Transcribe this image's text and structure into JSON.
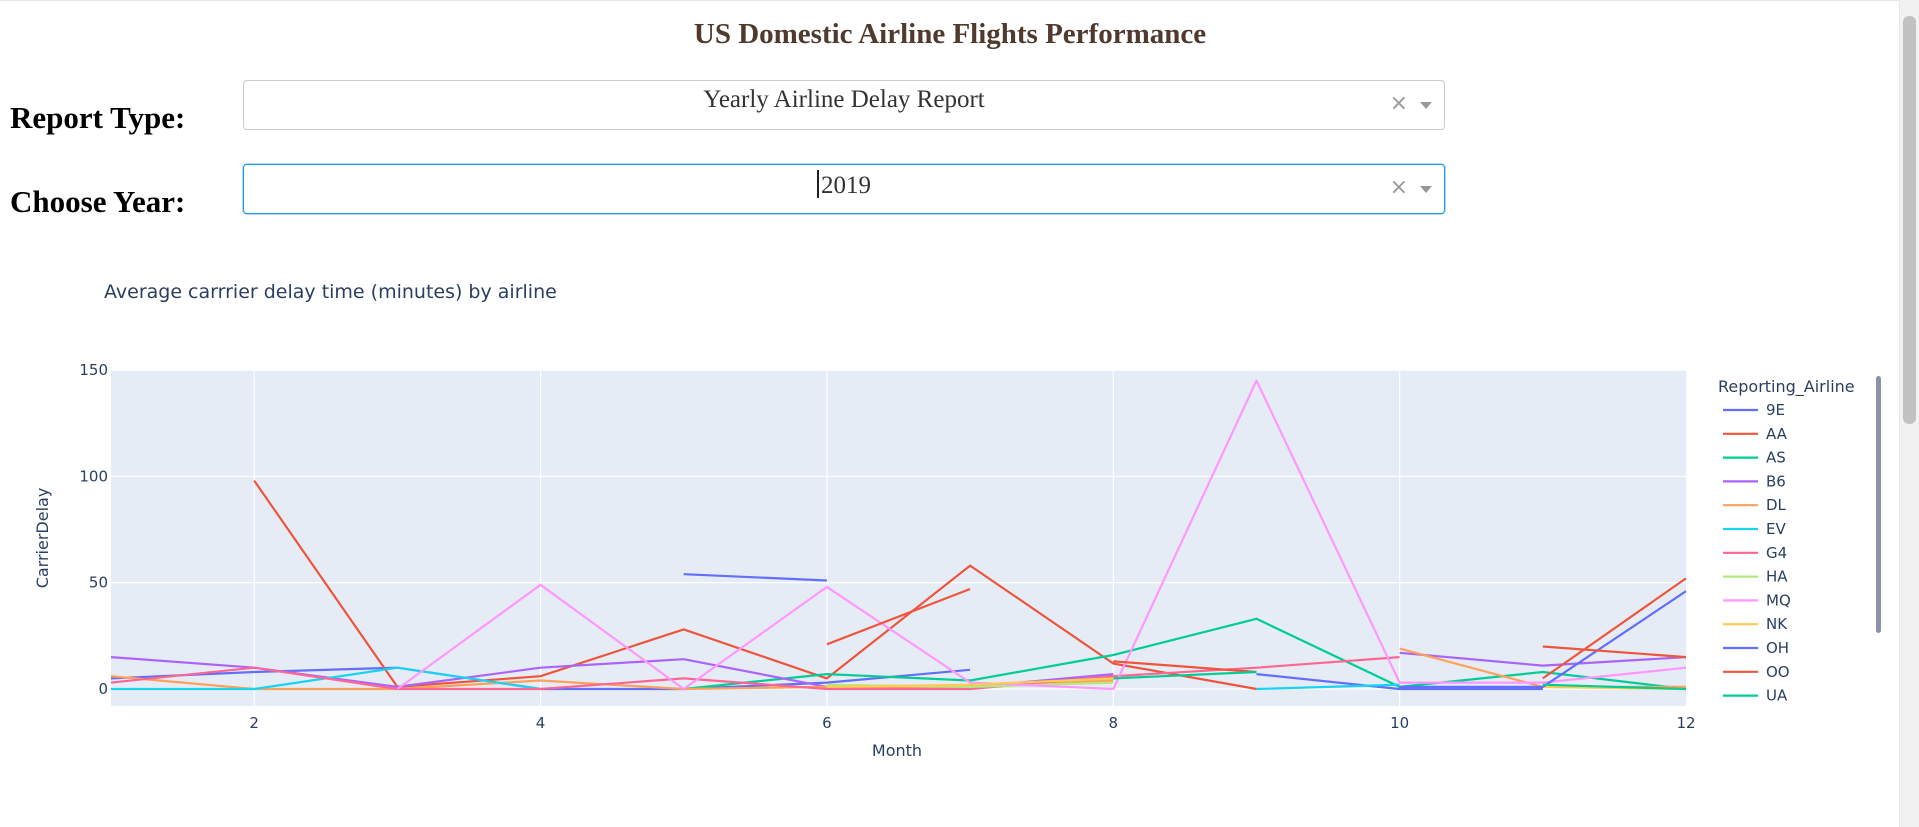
{
  "header": {
    "title": "US Domestic Airline Flights Performance"
  },
  "report_type": {
    "label": "Report Type:",
    "value": "Yearly Airline Delay Report"
  },
  "year": {
    "label": "Choose Year:",
    "value": "2019"
  },
  "colors": {
    "plot_bg": "#e5ecf6",
    "grid": "#ffffff",
    "axis_text": "#2a3f5f"
  },
  "chart_data": {
    "type": "line",
    "title": "Average carrrier delay time (minutes) by airline",
    "xlabel": "Month",
    "ylabel": "CarrierDelay",
    "xlim": [
      1,
      12
    ],
    "ylim": [
      -8,
      150
    ],
    "xticks": [
      2,
      4,
      6,
      8,
      10,
      12
    ],
    "yticks": [
      0,
      50,
      100,
      150
    ],
    "grid": true,
    "legend_title": "Reporting_Airline",
    "legend_position": "right",
    "series": [
      {
        "name": "9E",
        "color": "#636efa",
        "points": [
          [
            1,
            5
          ],
          [
            2,
            8
          ],
          [
            3,
            10
          ],
          [
            4,
            0
          ],
          [
            5,
            0
          ],
          [
            6,
            3
          ],
          [
            7,
            9
          ],
          [
            null,
            null
          ],
          [
            9,
            7
          ],
          [
            10,
            0
          ],
          [
            11,
            0
          ]
        ]
      },
      {
        "name": "AA",
        "color": "#EF553B",
        "points": [
          [
            2,
            98
          ],
          [
            3,
            1
          ],
          [
            4,
            6
          ],
          [
            5,
            28
          ],
          [
            6,
            5
          ],
          [
            7,
            58
          ],
          [
            8,
            12
          ],
          [
            9,
            0
          ]
        ]
      },
      {
        "name": "AS",
        "color": "#00cc96",
        "points": [
          [
            5,
            0
          ],
          [
            6,
            7
          ],
          [
            7,
            4
          ],
          [
            8,
            16
          ],
          [
            9,
            33
          ],
          [
            10,
            1
          ],
          [
            11,
            8
          ],
          [
            12,
            0
          ]
        ]
      },
      {
        "name": "B6",
        "color": "#ab63fa",
        "points": [
          [
            1,
            15
          ],
          [
            2,
            10
          ],
          [
            3,
            1
          ],
          [
            4,
            10
          ],
          [
            5,
            14
          ],
          [
            6,
            1
          ],
          [
            7,
            1
          ],
          [
            8,
            7
          ],
          [
            null,
            null
          ],
          [
            10,
            17
          ],
          [
            11,
            11
          ],
          [
            12,
            15
          ]
        ]
      },
      {
        "name": "DL",
        "color": "#FFA15A",
        "points": [
          [
            1,
            6
          ],
          [
            2,
            0
          ],
          [
            3,
            0
          ],
          [
            4,
            4
          ],
          [
            5,
            0
          ],
          [
            6,
            1
          ],
          [
            7,
            1
          ],
          [
            8,
            4
          ],
          [
            null,
            null
          ],
          [
            10,
            19
          ],
          [
            11,
            1
          ],
          [
            12,
            1
          ]
        ]
      },
      {
        "name": "EV",
        "color": "#19d3f3",
        "points": [
          [
            1,
            0
          ],
          [
            2,
            0
          ],
          [
            3,
            10
          ],
          [
            4,
            0
          ],
          [
            null,
            null
          ],
          [
            9,
            0
          ],
          [
            10,
            2
          ]
        ]
      },
      {
        "name": "G4",
        "color": "#FF6692",
        "points": [
          [
            1,
            3
          ],
          [
            2,
            10
          ],
          [
            3,
            0
          ],
          [
            4,
            0
          ],
          [
            5,
            5
          ],
          [
            6,
            0
          ],
          [
            7,
            0
          ],
          [
            8,
            6
          ],
          [
            9,
            10
          ],
          [
            10,
            15
          ]
        ]
      },
      {
        "name": "HA",
        "color": "#B6E880",
        "points": [
          [
            6,
            2
          ],
          [
            7,
            1
          ],
          [
            8,
            3
          ],
          [
            null,
            null
          ],
          [
            11,
            1
          ],
          [
            12,
            0
          ]
        ]
      },
      {
        "name": "MQ",
        "color": "#FF97FF",
        "points": [
          [
            3,
            0
          ],
          [
            4,
            49
          ],
          [
            5,
            0
          ],
          [
            6,
            48
          ],
          [
            7,
            3
          ],
          [
            8,
            0
          ],
          [
            9,
            145
          ],
          [
            10,
            3
          ],
          [
            11,
            3
          ],
          [
            12,
            10
          ]
        ]
      },
      {
        "name": "NK",
        "color": "#FECB52",
        "points": [
          [
            6,
            1
          ],
          [
            7,
            2
          ],
          [
            8,
            5
          ],
          [
            null,
            null
          ],
          [
            11,
            1
          ],
          [
            12,
            0
          ]
        ]
      },
      {
        "name": "OH",
        "color": "#636efa",
        "points": [
          [
            5,
            54
          ],
          [
            6,
            51
          ],
          [
            null,
            null
          ],
          [
            10,
            1
          ],
          [
            11,
            1
          ],
          [
            12,
            46
          ]
        ]
      },
      {
        "name": "OO",
        "color": "#EF553B",
        "points": [
          [
            6,
            21
          ],
          [
            7,
            47
          ],
          [
            null,
            null
          ],
          [
            8,
            13
          ],
          [
            9,
            8
          ],
          [
            null,
            null
          ],
          [
            11,
            20
          ],
          [
            12,
            15
          ],
          [
            null,
            null
          ],
          [
            11,
            5
          ],
          [
            12,
            52
          ]
        ]
      },
      {
        "name": "UA",
        "color": "#00cc96",
        "points": [
          [
            8,
            5
          ],
          [
            9,
            8
          ],
          [
            null,
            null
          ],
          [
            11,
            2
          ],
          [
            12,
            0
          ]
        ]
      }
    ]
  }
}
